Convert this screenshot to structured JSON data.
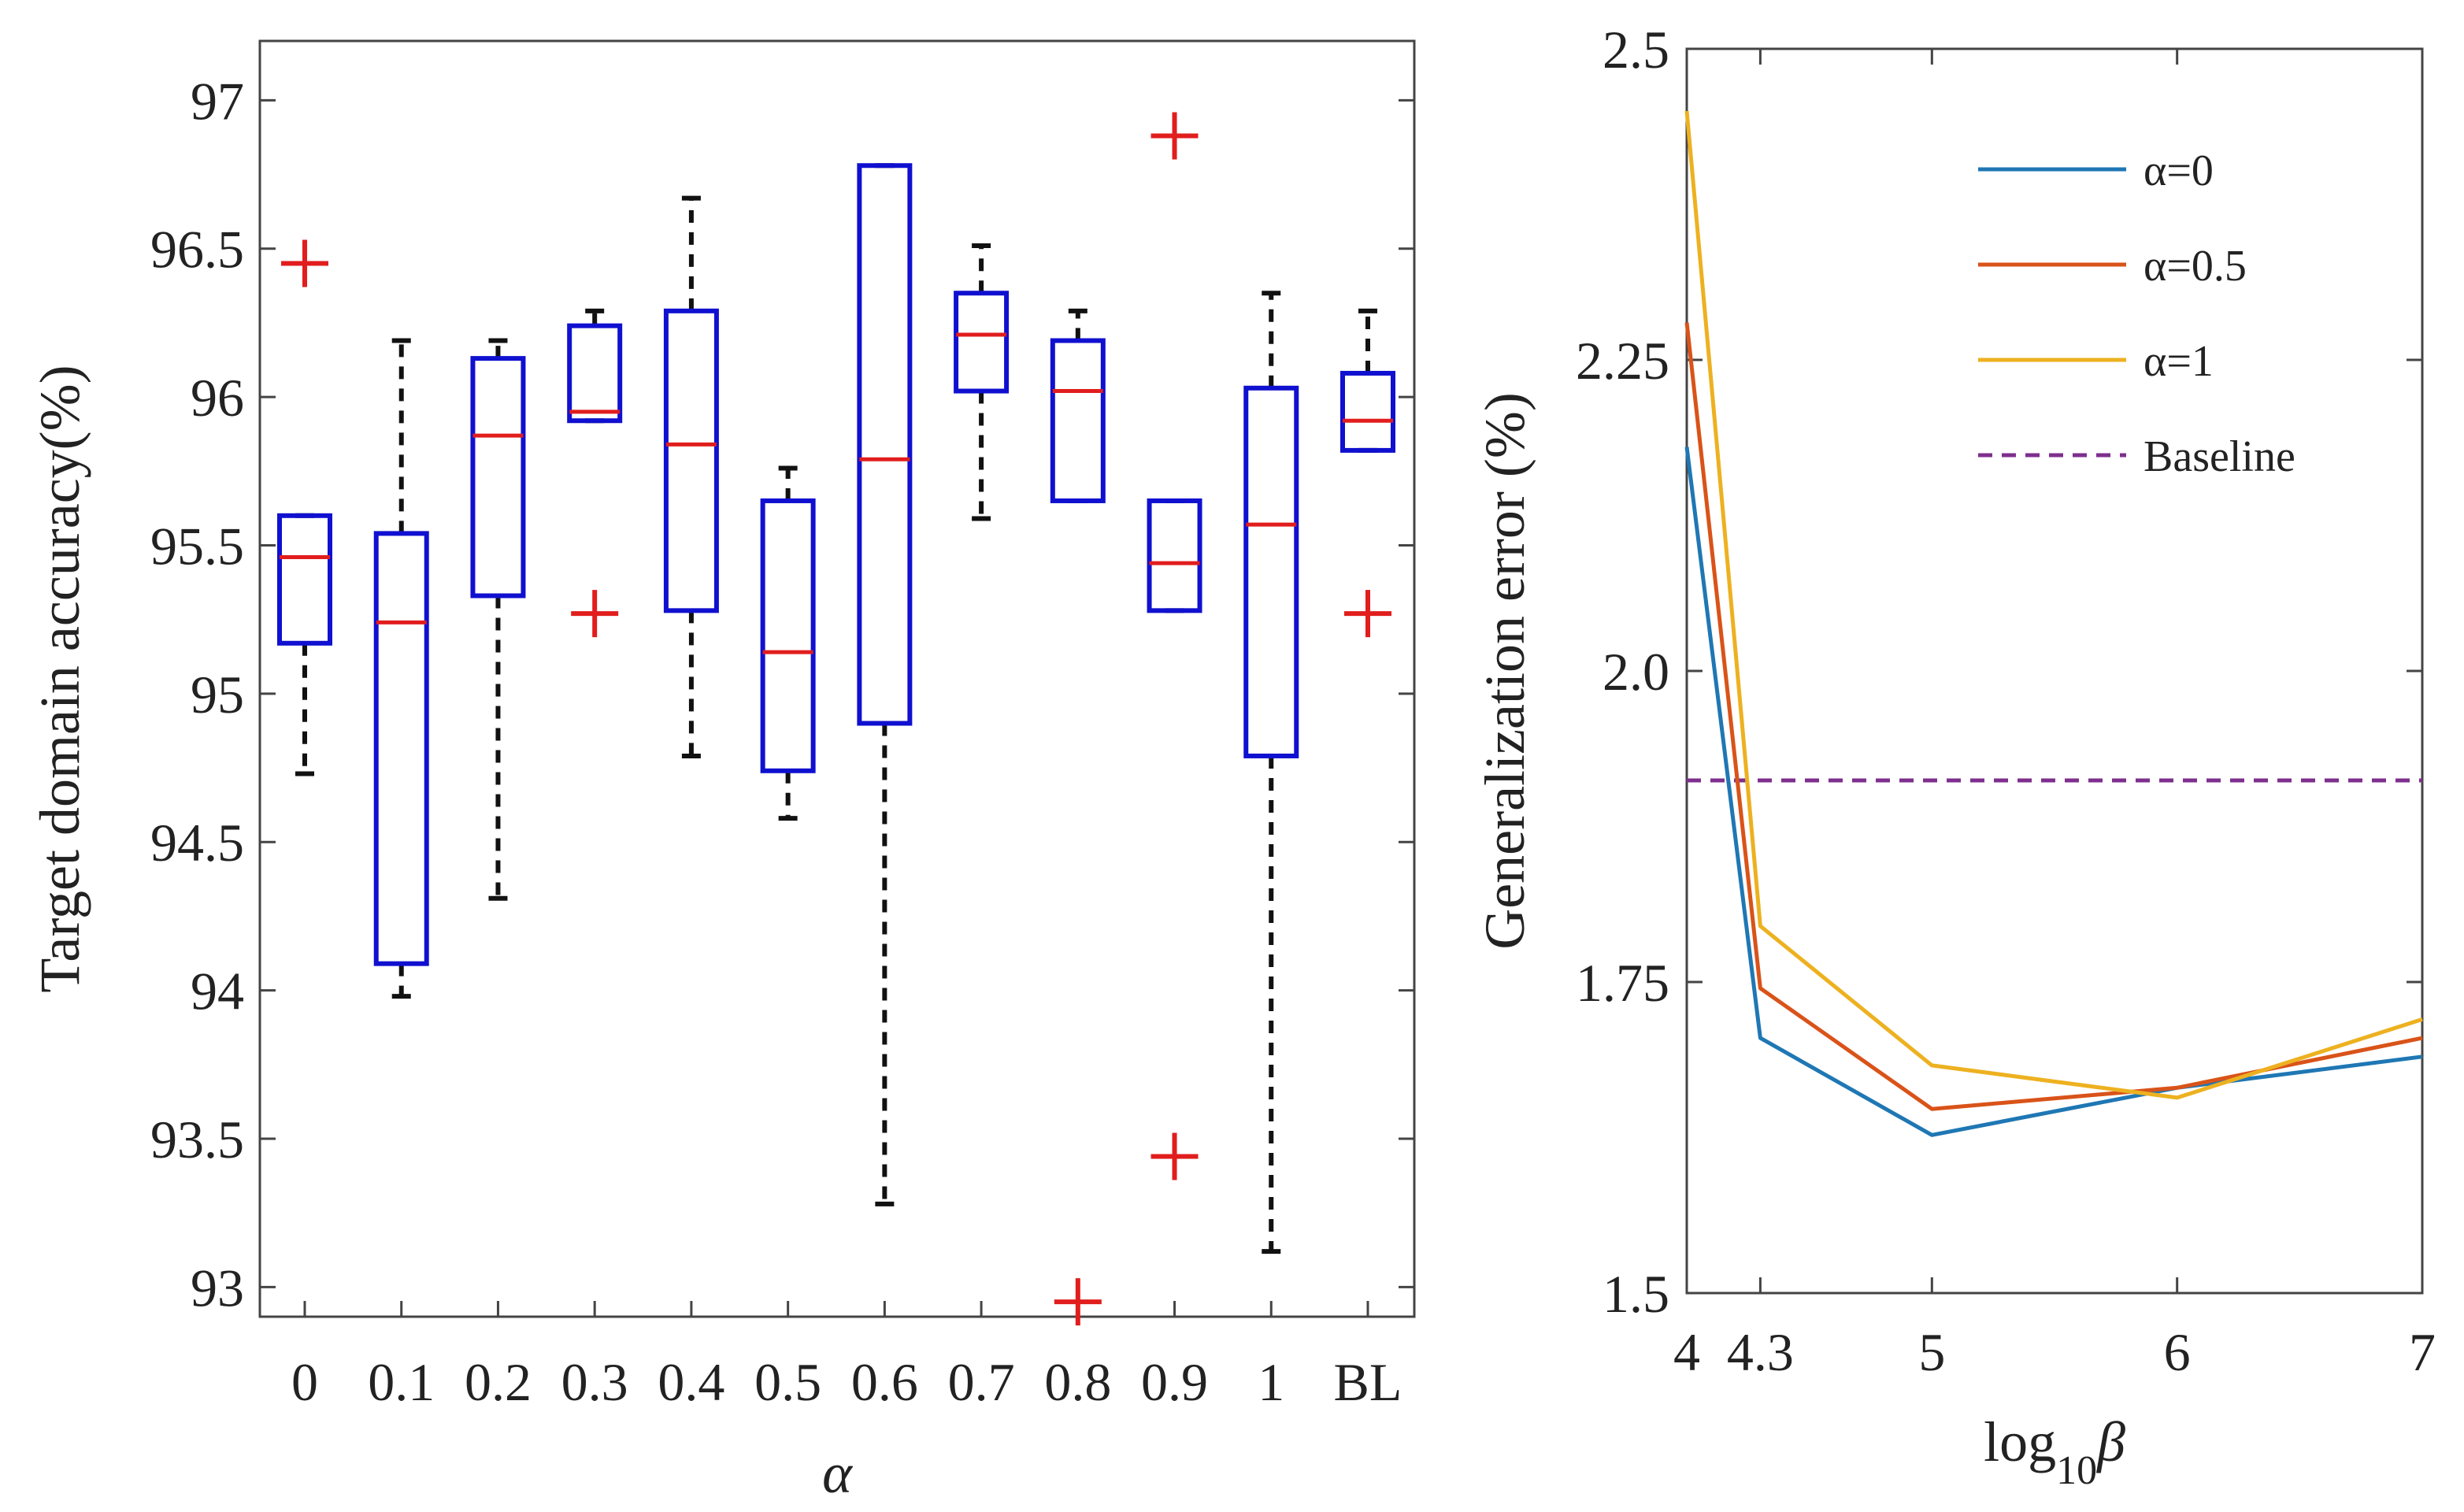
{
  "chart_data": [
    {
      "type": "box",
      "title": "",
      "xlabel": "α",
      "ylabel": "Target domain accuracy(%)",
      "ylim": [
        92.9,
        97.2
      ],
      "yticks": [
        93,
        93.5,
        94,
        94.5,
        95,
        95.5,
        96,
        96.5,
        97
      ],
      "ytick_labels": [
        "93",
        "93.5",
        "94",
        "94.5",
        "95",
        "95.5",
        "96",
        "96.5",
        "97"
      ],
      "grid": false,
      "colors": {
        "box": "#1010d0",
        "median": "#e11d1d",
        "whisker": "#111111",
        "outlier": "#e11d1d"
      },
      "categories": [
        "0",
        "0.1",
        "0.2",
        "0.3",
        "0.4",
        "0.5",
        "0.6",
        "0.7",
        "0.8",
        "0.9",
        "1",
        "BL"
      ],
      "boxes": [
        {
          "whisker_low": 94.73,
          "q1": 95.17,
          "median": 95.46,
          "q3": 95.6,
          "whisker_high": 95.6,
          "outliers": [
            96.45
          ]
        },
        {
          "whisker_low": 93.98,
          "q1": 94.09,
          "median": 95.24,
          "q3": 95.54,
          "whisker_high": 96.19,
          "outliers": []
        },
        {
          "whisker_low": 94.31,
          "q1": 95.33,
          "median": 95.87,
          "q3": 96.13,
          "whisker_high": 96.19,
          "outliers": []
        },
        {
          "whisker_low": 95.92,
          "q1": 95.92,
          "median": 95.95,
          "q3": 96.24,
          "whisker_high": 96.29,
          "outliers": [
            95.27
          ]
        },
        {
          "whisker_low": 94.79,
          "q1": 95.28,
          "median": 95.84,
          "q3": 96.29,
          "whisker_high": 96.67,
          "outliers": []
        },
        {
          "whisker_low": 94.58,
          "q1": 94.74,
          "median": 95.14,
          "q3": 95.65,
          "whisker_high": 95.76,
          "outliers": []
        },
        {
          "whisker_low": 93.28,
          "q1": 94.9,
          "median": 95.79,
          "q3": 96.78,
          "whisker_high": 96.78,
          "outliers": []
        },
        {
          "whisker_low": 95.59,
          "q1": 96.02,
          "median": 96.21,
          "q3": 96.35,
          "whisker_high": 96.51,
          "outliers": []
        },
        {
          "whisker_low": 95.65,
          "q1": 95.65,
          "median": 96.02,
          "q3": 96.19,
          "whisker_high": 96.29,
          "outliers": [
            92.95
          ]
        },
        {
          "whisker_low": 95.28,
          "q1": 95.28,
          "median": 95.44,
          "q3": 95.65,
          "whisker_high": 95.65,
          "outliers": [
            96.88,
            93.44
          ]
        },
        {
          "whisker_low": 93.12,
          "q1": 94.79,
          "median": 95.57,
          "q3": 96.03,
          "whisker_high": 96.35,
          "outliers": []
        },
        {
          "whisker_low": 95.82,
          "q1": 95.82,
          "median": 95.92,
          "q3": 96.08,
          "whisker_high": 96.29,
          "outliers": [
            95.27
          ]
        }
      ]
    },
    {
      "type": "line",
      "title": "",
      "xlabel": "log10β",
      "ylabel": "Generalization error (%)",
      "xlim": [
        4,
        7
      ],
      "ylim": [
        1.5,
        2.5
      ],
      "xticks": [
        4,
        4.3,
        5,
        6,
        7
      ],
      "xtick_labels": [
        "4",
        "4.3",
        "5",
        "6",
        "7"
      ],
      "yticks": [
        1.5,
        1.75,
        2.0,
        2.25,
        2.5
      ],
      "ytick_labels": [
        "1.5",
        "1.75",
        "2.0",
        "2.25",
        "2.5"
      ],
      "grid": false,
      "legend_position": "top-right",
      "x": [
        4,
        4.3,
        5,
        6,
        7
      ],
      "series": [
        {
          "name": "α=0",
          "color": "#1f77b4",
          "values": [
            2.18,
            1.705,
            1.627,
            1.665,
            1.69
          ]
        },
        {
          "name": "α=0.5",
          "color": "#d95319",
          "values": [
            2.28,
            1.745,
            1.648,
            1.665,
            1.705
          ]
        },
        {
          "name": "α=1",
          "color": "#edb120",
          "values": [
            2.45,
            1.795,
            1.683,
            1.657,
            1.72
          ]
        }
      ],
      "baseline": {
        "name": "Baseline",
        "color": "#7e2f8e",
        "value": 1.912
      }
    }
  ]
}
